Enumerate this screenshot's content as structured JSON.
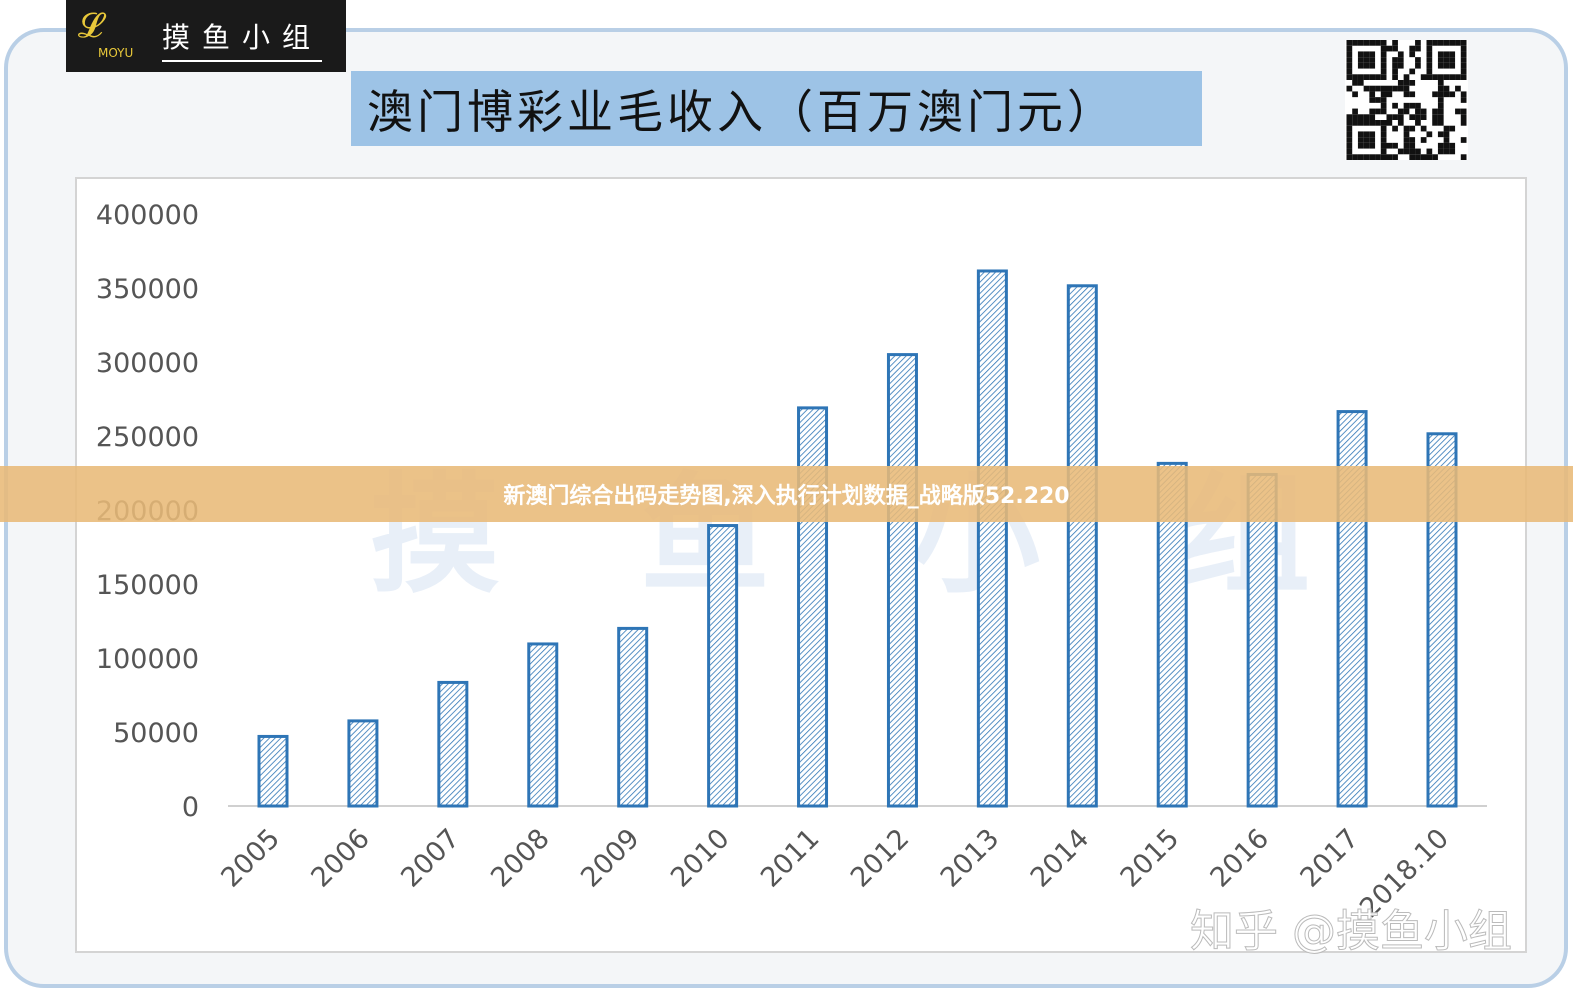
{
  "logo": {
    "brand": "摸鱼小组",
    "sub": "MOYU"
  },
  "title": "澳门博彩业毛收入（百万澳门元）",
  "banner": "新澳门综合出码走势图,深入执行计划数据_战略版52.220",
  "watermark": "知乎 @摸鱼小组",
  "colors": {
    "bar_stroke": "#2e75b6",
    "title_bg": "#9dc3e6",
    "banner": "#e8ba78"
  },
  "chart_data": {
    "type": "bar",
    "title": "澳门博彩业毛收入（百万澳门元）",
    "categories": [
      "2005",
      "2006",
      "2007",
      "2008",
      "2009",
      "2010",
      "2011",
      "2012",
      "2013",
      "2014",
      "2015",
      "2016",
      "2017",
      "2018.10"
    ],
    "values": [
      47000,
      57500,
      83500,
      109500,
      120000,
      189500,
      269000,
      305000,
      361500,
      351500,
      231500,
      224000,
      266500,
      251500
    ],
    "ylim": [
      0,
      400000
    ],
    "yticks": [
      "0",
      "50000",
      "100000",
      "150000",
      "200000",
      "250000",
      "300000",
      "350000",
      "400000"
    ],
    "grid": false,
    "fill": "diagonal-hatch"
  }
}
